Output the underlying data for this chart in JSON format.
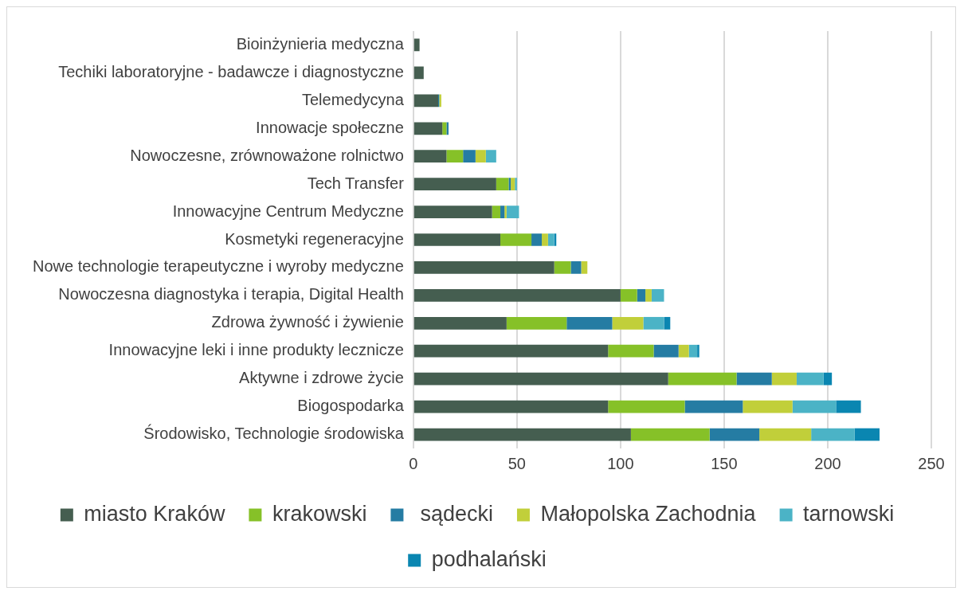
{
  "chart_data": {
    "type": "bar",
    "orientation": "horizontal",
    "stacked": true,
    "categories": [
      "Bioinżynieria medyczna",
      "Techiki laboratoryjne - badawcze i diagnostyczne",
      "Telemedycyna",
      "Innowacje społeczne",
      "Nowoczesne, zrównoważone rolnictwo",
      "Tech Transfer",
      "Innowacyjne Centrum Medyczne",
      "Kosmetyki regeneracyjne",
      "Nowe technologie terapeutyczne i wyroby medyczne",
      "Nowoczesna diagnostyka i terapia, Digital Health",
      "Zdrowa żywność i żywienie",
      "Innowacyjne leki i inne produkty lecznicze",
      "Aktywne i zdrowe życie",
      "Biogospodarka",
      "Środowisko, Technologie środowiska"
    ],
    "series": [
      {
        "name": "miasto Kraków",
        "color": "#455e50",
        "values": [
          3,
          5,
          12,
          14,
          16,
          40,
          38,
          42,
          68,
          100,
          45,
          94,
          123,
          94,
          105
        ]
      },
      {
        "name": "krakowski",
        "color": "#86c128",
        "values": [
          0,
          0,
          0,
          2,
          8,
          6,
          4,
          15,
          8,
          8,
          29,
          22,
          33,
          37,
          38
        ]
      },
      {
        "name": " sądecki",
        "color": "#257ca3",
        "values": [
          0,
          0,
          0.5,
          1,
          6,
          1,
          2,
          5,
          5,
          4,
          22,
          12,
          17,
          28,
          24
        ]
      },
      {
        "name": "Małopolska Zachodnia",
        "color": "#c1cf3a",
        "values": [
          0,
          0,
          1,
          0,
          5,
          2,
          1,
          3,
          3,
          3,
          15,
          5,
          12,
          24,
          25
        ]
      },
      {
        "name": "tarnowski",
        "color": "#4bb3c6",
        "values": [
          0,
          0,
          0,
          0,
          5,
          1,
          6,
          3,
          0,
          6,
          10,
          4,
          13,
          21,
          21
        ]
      },
      {
        "name": "podhalański",
        "color": "#0a86b1",
        "values": [
          0,
          0,
          0,
          0,
          0,
          0,
          0,
          1,
          0,
          0,
          3,
          1,
          4,
          12,
          12
        ]
      }
    ],
    "xlim": [
      0,
      250
    ],
    "xticks": [
      0,
      50,
      100,
      150,
      200,
      250
    ],
    "grid": "x",
    "legend": "bottom"
  }
}
